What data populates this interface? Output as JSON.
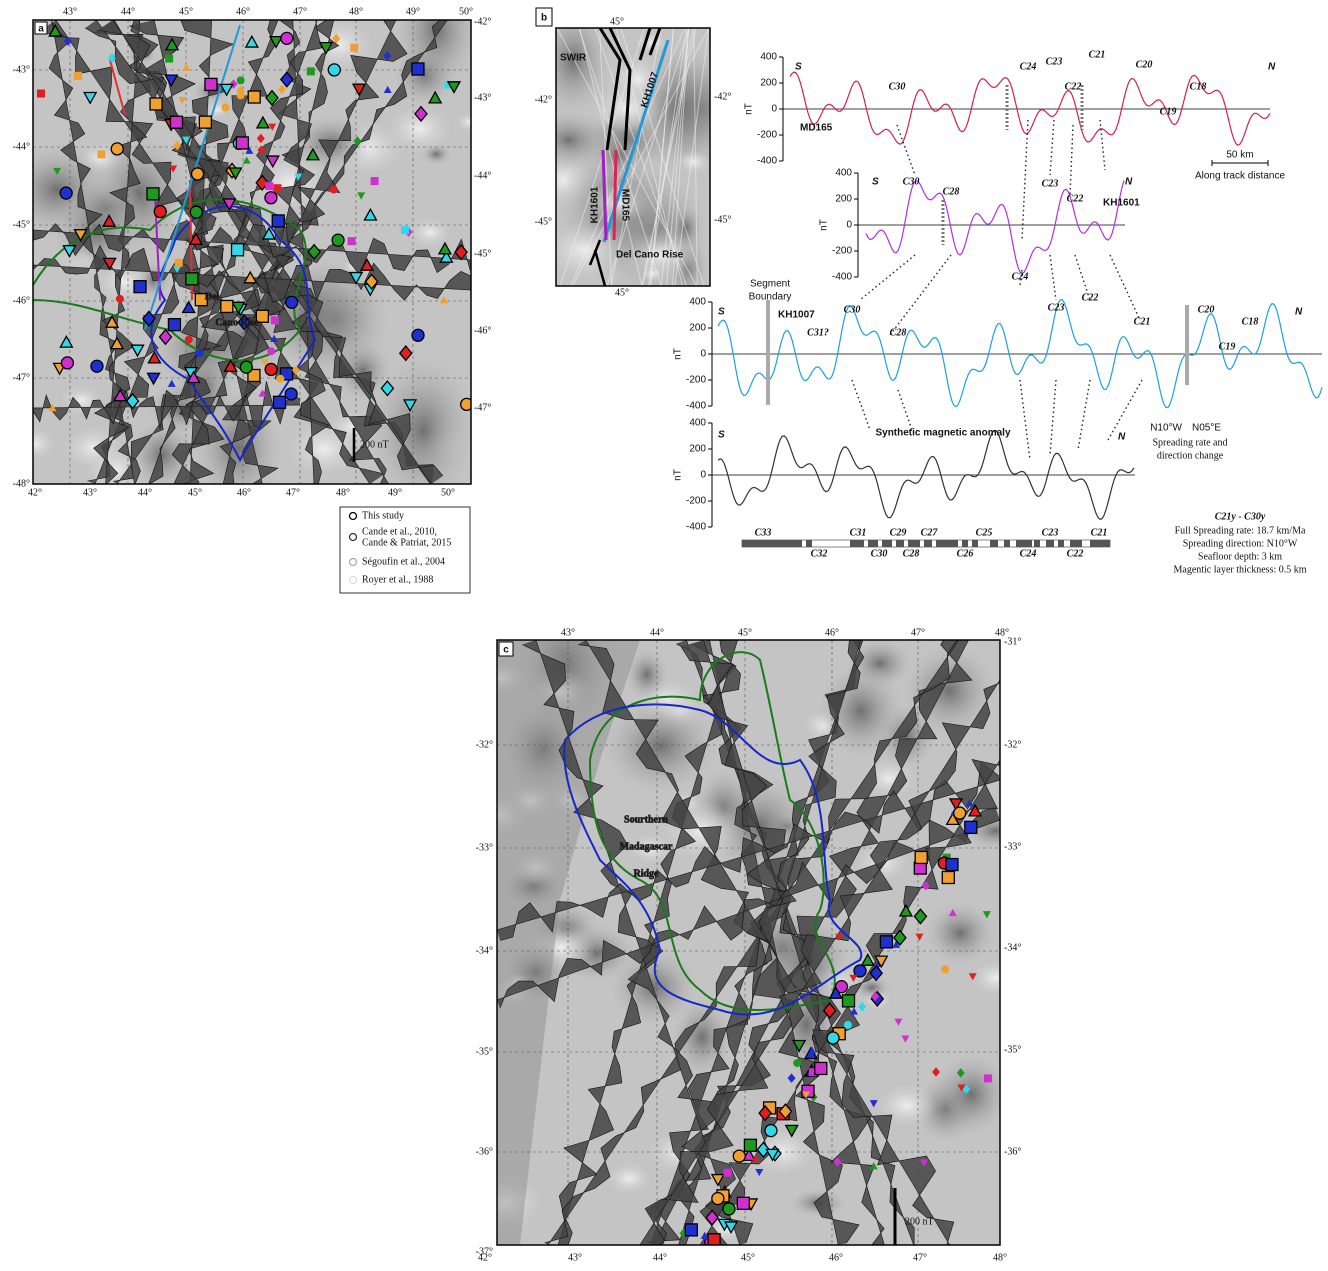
{
  "panel_a": {
    "label": "a",
    "lon_top": [
      "43°",
      "44°",
      "45°",
      "46°",
      "47°",
      "48°",
      "49°",
      "50°"
    ],
    "lon_bottom": [
      "42°",
      "43°",
      "44°",
      "45°",
      "46°",
      "47°",
      "48°",
      "49°",
      "50°"
    ],
    "lat_left": [
      "-43°",
      "-44°",
      "-45°",
      "-46°",
      "-47°",
      "-48°"
    ],
    "lat_right": [
      "-42°",
      "-43°",
      "-44°",
      "-45°",
      "-46°",
      "-47°"
    ],
    "annotations": [
      "Del",
      "Cano Rise"
    ],
    "scale_label": "200 nT",
    "legend": [
      "This study",
      "Cande et al., 2010,",
      "Cande & Patriat, 2015",
      "Ségoufin et al., 2004",
      "Royer et al., 1988"
    ]
  },
  "panel_b": {
    "label": "b",
    "inset": {
      "lon_top": "45°",
      "lon_bottom": "45°",
      "lat_left": [
        "-42°",
        "-45°"
      ],
      "lat_right": [
        "-42°",
        "-45°"
      ],
      "labels": [
        "SWIR",
        "KH1007",
        "KH1601",
        "MD165",
        "Del Cano Rise"
      ]
    },
    "profiles": [
      {
        "name": "MD165",
        "axis_label": "nT",
        "yticks": [
          "400",
          "200",
          "0",
          "-200",
          "-400"
        ],
        "start": "S",
        "end": "N",
        "chrons": [
          "C30",
          "C24",
          "C23",
          "C22",
          "C21",
          "C20",
          "C18",
          "C19"
        ]
      },
      {
        "name": "KH1601",
        "axis_label": "nT",
        "yticks": [
          "400",
          "200",
          "0",
          "-200",
          "-400"
        ],
        "start": "S",
        "end": "N",
        "chrons": [
          "C30",
          "C28",
          "C23",
          "C22"
        ]
      },
      {
        "name": "KH1007",
        "axis_label": "nT",
        "yticks": [
          "400",
          "200",
          "0",
          "-200",
          "-400"
        ],
        "start": "S",
        "end": "N",
        "chrons": [
          "C31?",
          "C30",
          "C28",
          "C24",
          "C23",
          "C22",
          "C21",
          "C20",
          "C19",
          "C18"
        ]
      },
      {
        "name": "Synthetic magnetic anomaly",
        "axis_label": "nT",
        "yticks": [
          "400",
          "200",
          "0",
          "-200",
          "-400"
        ],
        "start": "S",
        "end": "N",
        "chrons": []
      }
    ],
    "scale_bar": "50 km",
    "scale_caption": "Along track distance",
    "segment_boundary": [
      "Segment",
      "Boundary"
    ],
    "direction_left": "N10°W",
    "direction_right": "N05°E",
    "change_note": [
      "Spreading rate and",
      "direction change"
    ],
    "polarity_upper": [
      "C33",
      "C31",
      "C29",
      "C27",
      "C25",
      "C23",
      "C21"
    ],
    "polarity_lower": [
      "C32",
      "C30",
      "C28",
      "C26",
      "C24",
      "C22"
    ],
    "params_title": "C21y - C30y",
    "params": [
      "Full Spreading rate: 18.7 km/Ma",
      "Spreading direction: N10°W",
      "Seafloor depth: 3 km",
      "Magentic layer thickness: 0.5 km"
    ]
  },
  "panel_c": {
    "label": "c",
    "lon_top": [
      "43°",
      "44°",
      "45°",
      "46°",
      "47°",
      "48°"
    ],
    "lon_bottom": [
      "42°",
      "43°",
      "44°",
      "45°",
      "46°",
      "47°",
      "48°"
    ],
    "lat_left": [
      "-32°",
      "-33°",
      "-34°",
      "-35°",
      "-36°",
      "-37°"
    ],
    "lat_right": [
      "-31°",
      "-32°",
      "-33°",
      "-34°",
      "-35°",
      "-36°"
    ],
    "annotations": [
      "Sourthern",
      "Madagascar",
      "Ridge"
    ],
    "scale_label": "200 nT"
  }
}
